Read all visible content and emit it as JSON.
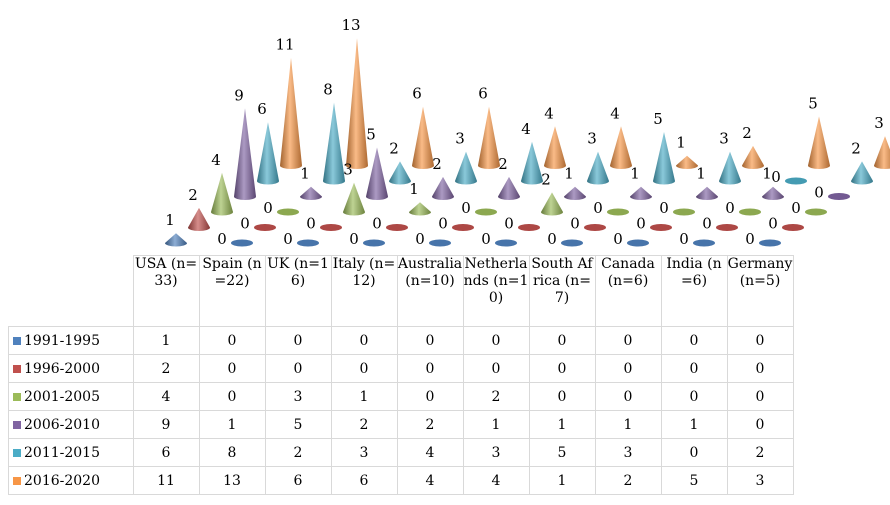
{
  "chart_data": {
    "type": "cone",
    "categories": [
      "USA (n=33)",
      "Spain (n=22)",
      "UK (n=16)",
      "Italy (n=12)",
      "Australia (n=10)",
      "Netherlands (n=10)",
      "South Africa (n=7)",
      "Canada (n=6)",
      "India (n=6)",
      "Germany (n=5)"
    ],
    "series": [
      {
        "name": "1991-1995",
        "color": "#4f81bd",
        "values": [
          1,
          0,
          0,
          0,
          0,
          0,
          0,
          0,
          0,
          0
        ]
      },
      {
        "name": "1996-2000",
        "color": "#c0504d",
        "values": [
          2,
          0,
          0,
          0,
          0,
          0,
          0,
          0,
          0,
          0
        ]
      },
      {
        "name": "2001-2005",
        "color": "#9bbb59",
        "values": [
          4,
          0,
          3,
          1,
          0,
          2,
          0,
          0,
          0,
          0
        ]
      },
      {
        "name": "2006-2010",
        "color": "#8064a2",
        "values": [
          9,
          1,
          5,
          2,
          2,
          1,
          1,
          1,
          1,
          0
        ]
      },
      {
        "name": "2011-2015",
        "color": "#4bacc6",
        "values": [
          6,
          8,
          2,
          3,
          4,
          3,
          5,
          3,
          0,
          2
        ]
      },
      {
        "name": "2016-2020",
        "color": "#f79646",
        "values": [
          11,
          13,
          6,
          6,
          4,
          4,
          1,
          2,
          5,
          3
        ]
      }
    ]
  }
}
